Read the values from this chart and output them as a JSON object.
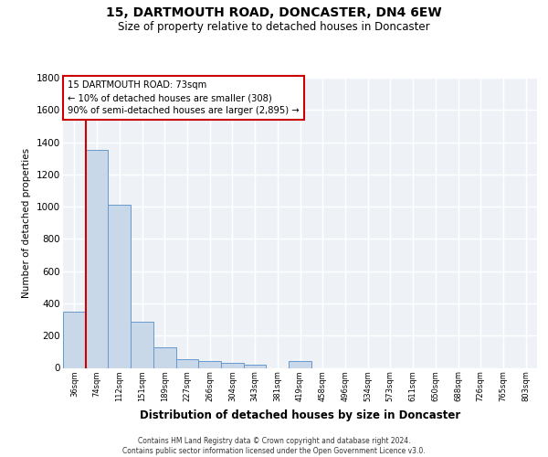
{
  "title": "15, DARTMOUTH ROAD, DONCASTER, DN4 6EW",
  "subtitle": "Size of property relative to detached houses in Doncaster",
  "xlabel": "Distribution of detached houses by size in Doncaster",
  "ylabel": "Number of detached properties",
  "categories": [
    "36sqm",
    "74sqm",
    "112sqm",
    "151sqm",
    "189sqm",
    "227sqm",
    "266sqm",
    "304sqm",
    "343sqm",
    "381sqm",
    "419sqm",
    "458sqm",
    "496sqm",
    "534sqm",
    "573sqm",
    "611sqm",
    "650sqm",
    "688sqm",
    "726sqm",
    "765sqm",
    "803sqm"
  ],
  "values": [
    350,
    1350,
    1010,
    285,
    125,
    55,
    45,
    30,
    20,
    0,
    40,
    0,
    0,
    0,
    0,
    0,
    0,
    0,
    0,
    0,
    0
  ],
  "bar_color": "#c8d8e8",
  "bar_edge_color": "#6699cc",
  "annotation_line_color": "#cc0000",
  "annotation_box_text": "15 DARTMOUTH ROAD: 73sqm\n← 10% of detached houses are smaller (308)\n90% of semi-detached houses are larger (2,895) →",
  "ylim": [
    0,
    1800
  ],
  "yticks": [
    0,
    200,
    400,
    600,
    800,
    1000,
    1200,
    1400,
    1600,
    1800
  ],
  "bg_color": "#eef2f7",
  "footer_line1": "Contains HM Land Registry data © Crown copyright and database right 2024.",
  "footer_line2": "Contains public sector information licensed under the Open Government Licence v3.0."
}
